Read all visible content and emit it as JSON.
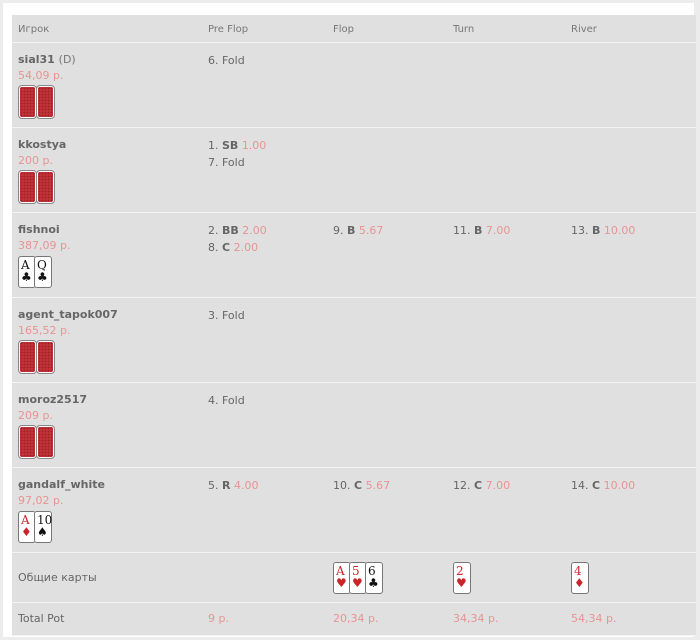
{
  "headers": [
    "Игрок",
    "Pre Flop",
    "Flop",
    "Turn",
    "River"
  ],
  "players": [
    {
      "name": "sial31",
      "dealer": "(D)",
      "stack": "54,09 р.",
      "cards": "back",
      "streets": [
        [
          {
            "text": "6. Fold"
          }
        ],
        [],
        [],
        []
      ]
    },
    {
      "name": "kkostya",
      "stack": "200 р.",
      "cards": "back",
      "streets": [
        [
          {
            "n": "1.",
            "act": "SB",
            "amount": "1.00"
          },
          {
            "text": "7. Fold"
          }
        ],
        [],
        [],
        []
      ]
    },
    {
      "name": "fishnoi",
      "stack": "387,09 р.",
      "cards": [
        {
          "rank": "A",
          "suit": "♣",
          "color": "black"
        },
        {
          "rank": "Q",
          "suit": "♣",
          "color": "black"
        }
      ],
      "streets": [
        [
          {
            "n": "2.",
            "act": "BB",
            "amount": "2.00"
          },
          {
            "n": "8.",
            "act": "C",
            "amount": "2.00"
          }
        ],
        [
          {
            "n": "9.",
            "act": "B",
            "amount": "5.67"
          }
        ],
        [
          {
            "n": "11.",
            "act": "B",
            "amount": "7.00"
          }
        ],
        [
          {
            "n": "13.",
            "act": "B",
            "amount": "10.00"
          }
        ]
      ]
    },
    {
      "name": "agent_tapok007",
      "stack": "165,52 р.",
      "cards": "back",
      "streets": [
        [
          {
            "text": "3. Fold"
          }
        ],
        [],
        [],
        []
      ]
    },
    {
      "name": "moroz2517",
      "stack": "209 р.",
      "cards": "back",
      "streets": [
        [
          {
            "text": "4. Fold"
          }
        ],
        [],
        [],
        []
      ]
    },
    {
      "name": "gandalf_white",
      "stack": "97,02 р.",
      "cards": [
        {
          "rank": "A",
          "suit": "♦",
          "color": "red"
        },
        {
          "rank": "10",
          "suit": "♠",
          "color": "black"
        }
      ],
      "streets": [
        [
          {
            "n": "5.",
            "act": "R",
            "amount": "4.00"
          }
        ],
        [
          {
            "n": "10.",
            "act": "C",
            "amount": "5.67"
          }
        ],
        [
          {
            "n": "12.",
            "act": "C",
            "amount": "7.00"
          }
        ],
        [
          {
            "n": "14.",
            "act": "C",
            "amount": "10.00"
          }
        ]
      ]
    }
  ],
  "board": {
    "label": "Общие карты",
    "streets": [
      [],
      [
        {
          "rank": "A",
          "suit": "♥",
          "color": "red"
        },
        {
          "rank": "5",
          "suit": "♥",
          "color": "red"
        },
        {
          "rank": "6",
          "suit": "♣",
          "color": "black"
        }
      ],
      [
        {
          "rank": "2",
          "suit": "♥",
          "color": "red"
        }
      ],
      [
        {
          "rank": "4",
          "suit": "♦",
          "color": "red"
        }
      ]
    ]
  },
  "pot": {
    "label": "Total Pot",
    "values": [
      "9 р.",
      "20,34 р.",
      "34,34 р.",
      "54,34 р."
    ]
  },
  "colors": {
    "amount": "#e89494",
    "background": "#e0e0e0",
    "card_back": "#c8353b",
    "red_suit": "#c8262b"
  }
}
